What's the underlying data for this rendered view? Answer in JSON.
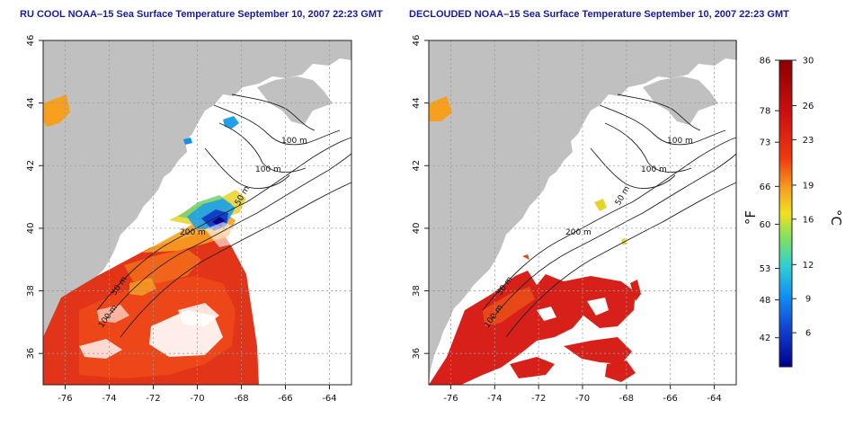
{
  "left_panel": {
    "title": "RU COOL NOAA–15 Sea Surface Temperature September 10, 2007 22:23 GMT",
    "contour_labels": [
      "100 m",
      "100 m",
      "50 m",
      "200 m",
      "50 m",
      "100 m"
    ]
  },
  "right_panel": {
    "title": "DECLOUDED NOAA–15 Sea Surface Temperature September 10, 2007 22:23 GMT",
    "contour_labels": [
      "100 m",
      "100 m",
      "50 m",
      "200 m",
      "50 m",
      "100 m"
    ]
  },
  "axes": {
    "x_ticks": [
      "-76",
      "-74",
      "-72",
      "-70",
      "-68",
      "-66",
      "-64"
    ],
    "y_ticks": [
      "36",
      "38",
      "40",
      "42",
      "44",
      "46"
    ]
  },
  "colorbar": {
    "fahrenheit_label": "°F",
    "celsius_label": "°C",
    "fahrenheit_ticks": [
      "86",
      "78",
      "73",
      "66",
      "60",
      "53",
      "48",
      "42"
    ],
    "celsius_ticks": [
      "30",
      "26",
      "23",
      "19",
      "16",
      "12",
      "9",
      "6"
    ],
    "scale_colors": [
      "#8b0000",
      "#d01010",
      "#f03a10",
      "#f7a020",
      "#f0e020",
      "#80e060",
      "#30d0d0",
      "#1090f0",
      "#1040d0",
      "#000090"
    ]
  },
  "colors": {
    "land": "#c0c0c0",
    "ocean": "#ffffff",
    "frame": "#222222",
    "title": "#1a1aa0"
  }
}
